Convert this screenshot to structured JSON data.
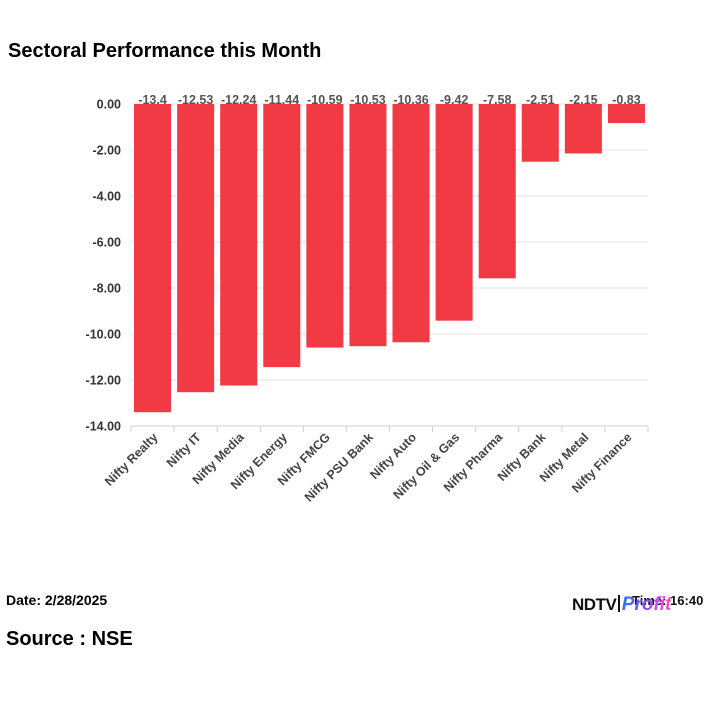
{
  "chart_data": {
    "type": "bar",
    "title": "Sectoral Performance this Month",
    "categories": [
      "Nifty Realty",
      "Nifty IT",
      "Nifty Media",
      "Nifty Energy",
      "Nifty FMCG",
      "Nifty PSU Bank",
      "Nifty Auto",
      "Nifty Oil & Gas",
      "Nifty Pharma",
      "Nifty Bank",
      "Nifty Metal",
      "Nifty Finance"
    ],
    "values": [
      -13.4,
      -12.53,
      -12.24,
      -11.44,
      -10.59,
      -10.53,
      -10.36,
      -9.42,
      -7.58,
      -2.51,
      -2.15,
      -0.83
    ],
    "data_labels": [
      "-13.4",
      "-12.53",
      "-12.24",
      "-11.44",
      "-10.59",
      "-10.53",
      "-10.36",
      "-9.42",
      "-7.58",
      "-2.51",
      "-2.15",
      "-0.83"
    ],
    "yticks": [
      "0.00",
      "-2.00",
      "-4.00",
      "-6.00",
      "-8.00",
      "-10.00",
      "-12.00",
      "-14.00"
    ],
    "ytick_values": [
      0,
      -2,
      -4,
      -6,
      -8,
      -10,
      -12,
      -14
    ],
    "ylim": [
      -14,
      0
    ],
    "xlabel": "",
    "ylabel": "",
    "bar_color": "#f23a45",
    "grid": true
  },
  "footer": {
    "date": "Date: 2/28/2025",
    "source": "Source : NSE",
    "brand_ndtv": "NDTV",
    "brand_profit": "Profit",
    "time": "Time: 16:40"
  }
}
